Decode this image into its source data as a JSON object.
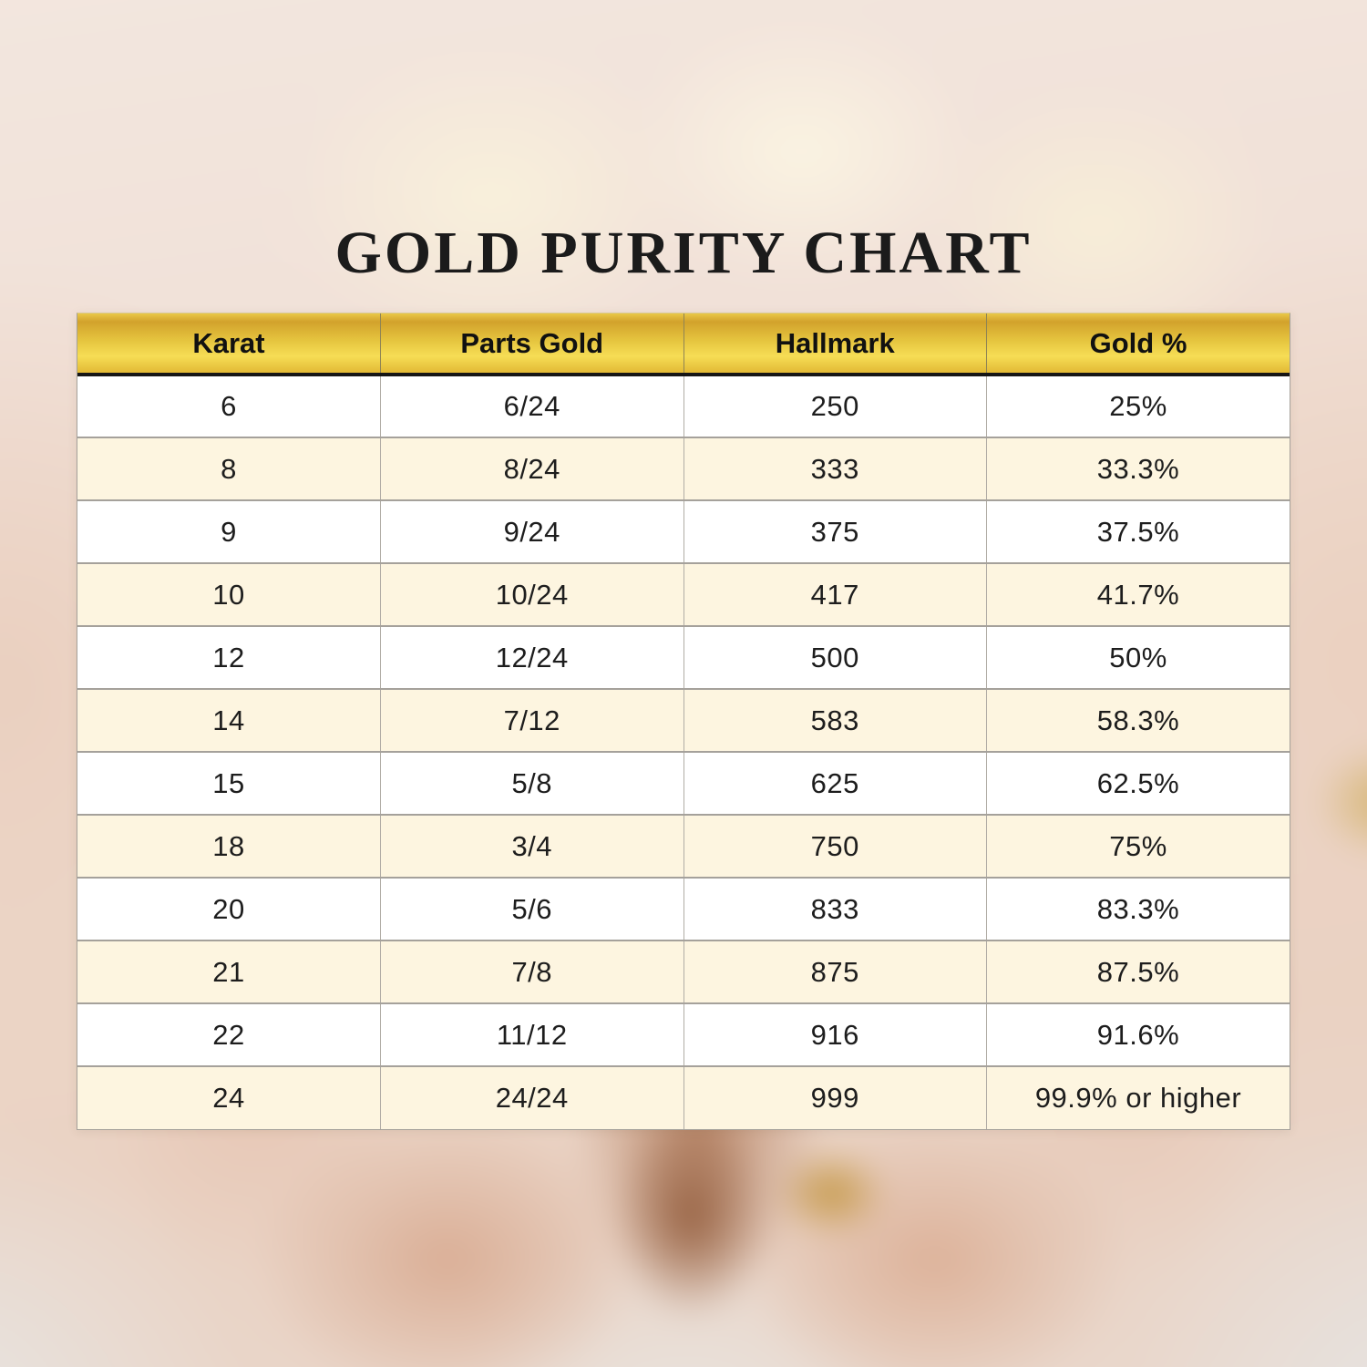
{
  "title": "GOLD PURITY CHART",
  "colors": {
    "title_color": "#1b1b1b",
    "header_gold_dark": "#d2a22c",
    "header_gold_light": "#f6dd55",
    "header_gold_bottom": "#e2b935",
    "header_text": "#111111",
    "header_divider": "#8f8454",
    "header_underline": "#161616",
    "row_white": "#ffffff",
    "row_cream": "#fdf5e0",
    "cell_text": "#1d1d1d",
    "grid_line": "#a5a19b"
  },
  "background": {
    "description": "blurred photo of cupped hands holding gold nuggets"
  },
  "chart_data": {
    "type": "table",
    "title": "GOLD PURITY CHART",
    "columns": [
      "Karat",
      "Parts Gold",
      "Hallmark",
      "Gold %"
    ],
    "rows": [
      [
        "6",
        "6/24",
        "250",
        "25%"
      ],
      [
        "8",
        "8/24",
        "333",
        "33.3%"
      ],
      [
        "9",
        "9/24",
        "375",
        "37.5%"
      ],
      [
        "10",
        "10/24",
        "417",
        "41.7%"
      ],
      [
        "12",
        "12/24",
        "500",
        "50%"
      ],
      [
        "14",
        "7/12",
        "583",
        "58.3%"
      ],
      [
        "15",
        "5/8",
        "625",
        "62.5%"
      ],
      [
        "18",
        "3/4",
        "750",
        "75%"
      ],
      [
        "20",
        "5/6",
        "833",
        "83.3%"
      ],
      [
        "21",
        "7/8",
        "875",
        "87.5%"
      ],
      [
        "22",
        "11/12",
        "916",
        "91.6%"
      ],
      [
        "24",
        "24/24",
        "999",
        "99.9% or higher"
      ]
    ],
    "striping": "rows alternate white and cream, first row white",
    "grid": true,
    "legend_position": "none"
  }
}
